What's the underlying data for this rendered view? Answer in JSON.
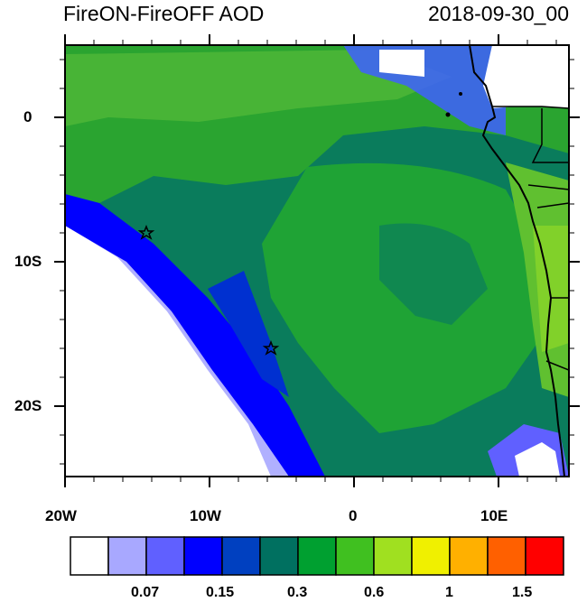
{
  "title": {
    "left": "FireON-FireOFF AOD",
    "right": "2018-09-30_00"
  },
  "axes": {
    "y_labels": [
      "0",
      "10S",
      "20S"
    ],
    "x_labels": [
      "20W",
      "10W",
      "0",
      "10E"
    ]
  },
  "markers": [
    {
      "name": "star",
      "lon": -14.3,
      "lat": -8.0
    },
    {
      "name": "star",
      "lon": -5.8,
      "lat": -16.0
    }
  ],
  "colorbar": {
    "colors": [
      "#ffffff",
      "#a8a8ff",
      "#6060ff",
      "#0000ff",
      "#0040c0",
      "#007060",
      "#00a030",
      "#40c020",
      "#a0e020",
      "#f0f000",
      "#ffb000",
      "#ff6000",
      "#ff0000"
    ],
    "labels": [
      "0.07",
      "0.15",
      "0.3",
      "0.6",
      "1",
      "1.5"
    ]
  },
  "colors": {
    "ocean_base": "#0a7c5c",
    "land": "#ffffff",
    "coast": "#000000"
  }
}
